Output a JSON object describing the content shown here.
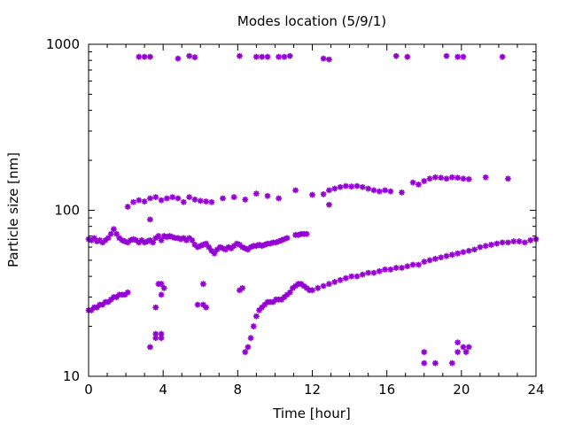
{
  "chart_data": {
    "type": "scatter",
    "title": "Modes location (5/9/1)",
    "xlabel": "Time [hour]",
    "ylabel": "Particle size [nm]",
    "xlim": [
      0,
      24
    ],
    "ylim": [
      10,
      1000
    ],
    "y_scale": "log",
    "grid": false,
    "legend": "none",
    "marker": "star",
    "color": "#9400d3",
    "xticks": [
      0,
      4,
      8,
      12,
      16,
      20,
      24
    ],
    "xtick_labels": [
      "0",
      "4",
      "8",
      "12",
      "16",
      "20",
      "24"
    ],
    "yticks": [
      10,
      100,
      1000
    ],
    "ytick_labels": [
      "10",
      "100",
      "1000"
    ],
    "series": [
      {
        "points": [
          [
            0.0,
            67
          ],
          [
            0.15,
            66
          ],
          [
            0.3,
            68
          ],
          [
            0.45,
            65
          ],
          [
            0.6,
            66
          ],
          [
            0.75,
            64
          ],
          [
            0.9,
            66
          ],
          [
            1.05,
            68
          ],
          [
            1.2,
            72
          ],
          [
            1.35,
            77
          ],
          [
            1.5,
            72
          ],
          [
            1.65,
            68
          ],
          [
            1.8,
            66
          ],
          [
            1.95,
            65
          ],
          [
            2.1,
            64
          ],
          [
            2.25,
            66
          ],
          [
            2.4,
            67
          ],
          [
            2.55,
            66
          ],
          [
            2.7,
            64
          ],
          [
            2.85,
            66
          ],
          [
            3.0,
            64
          ],
          [
            3.15,
            65
          ],
          [
            3.3,
            66
          ],
          [
            3.45,
            64
          ],
          [
            3.6,
            68
          ],
          [
            3.75,
            70
          ],
          [
            3.9,
            66
          ],
          [
            4.05,
            70
          ],
          [
            4.2,
            69
          ],
          [
            4.35,
            70
          ],
          [
            4.5,
            69
          ],
          [
            4.65,
            68
          ],
          [
            4.8,
            68
          ],
          [
            4.95,
            67
          ],
          [
            5.1,
            68
          ],
          [
            5.25,
            66
          ],
          [
            5.4,
            68
          ],
          [
            5.55,
            66
          ],
          [
            5.7,
            62
          ],
          [
            5.85,
            60
          ],
          [
            6.0,
            61
          ],
          [
            6.15,
            62
          ],
          [
            6.3,
            63
          ],
          [
            6.45,
            60
          ],
          [
            6.6,
            57
          ],
          [
            6.75,
            55
          ],
          [
            6.9,
            58
          ],
          [
            7.05,
            60
          ],
          [
            7.2,
            59
          ],
          [
            7.35,
            58
          ],
          [
            7.5,
            60
          ],
          [
            7.65,
            59
          ],
          [
            7.8,
            61
          ],
          [
            7.95,
            63
          ],
          [
            8.1,
            62
          ],
          [
            8.25,
            60
          ],
          [
            8.4,
            59
          ],
          [
            8.55,
            58
          ],
          [
            8.7,
            60
          ],
          [
            8.85,
            61
          ],
          [
            9.0,
            61
          ],
          [
            9.15,
            62
          ],
          [
            9.3,
            61
          ],
          [
            9.45,
            62
          ],
          [
            9.6,
            63
          ],
          [
            9.75,
            63
          ],
          [
            9.9,
            64
          ],
          [
            10.05,
            64
          ],
          [
            10.2,
            65
          ],
          [
            10.35,
            66
          ],
          [
            10.5,
            67
          ],
          [
            10.65,
            68
          ],
          [
            11.1,
            71
          ],
          [
            11.25,
            71
          ],
          [
            11.4,
            72
          ],
          [
            11.55,
            72
          ],
          [
            11.7,
            72
          ]
        ]
      },
      {
        "points": [
          [
            0.0,
            25
          ],
          [
            0.15,
            25
          ],
          [
            0.3,
            26
          ],
          [
            0.45,
            26
          ],
          [
            0.6,
            27
          ],
          [
            0.75,
            27
          ],
          [
            0.9,
            28
          ],
          [
            1.05,
            28
          ],
          [
            1.2,
            29
          ],
          [
            1.35,
            30
          ],
          [
            1.5,
            30
          ],
          [
            1.65,
            31
          ],
          [
            1.8,
            31
          ],
          [
            1.95,
            31
          ],
          [
            2.1,
            32
          ],
          [
            8.4,
            14
          ],
          [
            8.55,
            15
          ],
          [
            8.7,
            17
          ],
          [
            8.85,
            20
          ],
          [
            9.0,
            23
          ],
          [
            9.15,
            25
          ],
          [
            9.3,
            26
          ],
          [
            9.45,
            27
          ],
          [
            9.6,
            28
          ],
          [
            9.75,
            28
          ],
          [
            9.9,
            28
          ],
          [
            10.05,
            29
          ],
          [
            10.2,
            29
          ],
          [
            10.35,
            29
          ],
          [
            10.5,
            30
          ],
          [
            10.65,
            31
          ],
          [
            10.8,
            32
          ],
          [
            10.95,
            34
          ],
          [
            11.1,
            35
          ],
          [
            11.25,
            36
          ],
          [
            11.4,
            36
          ],
          [
            11.55,
            35
          ],
          [
            11.7,
            34
          ],
          [
            11.85,
            33
          ],
          [
            12.0,
            33
          ],
          [
            12.3,
            34
          ],
          [
            12.6,
            35
          ],
          [
            12.9,
            36
          ],
          [
            13.2,
            37
          ],
          [
            13.5,
            38
          ],
          [
            13.8,
            39
          ],
          [
            14.1,
            40
          ],
          [
            14.4,
            40
          ],
          [
            14.7,
            41
          ],
          [
            15.0,
            42
          ],
          [
            15.3,
            42
          ],
          [
            15.6,
            43
          ],
          [
            15.9,
            44
          ],
          [
            16.2,
            44
          ],
          [
            16.5,
            45
          ],
          [
            16.8,
            45
          ],
          [
            17.1,
            46
          ],
          [
            17.4,
            47
          ],
          [
            17.7,
            47
          ],
          [
            18.0,
            49
          ],
          [
            18.3,
            50
          ],
          [
            18.6,
            51
          ],
          [
            18.9,
            52
          ],
          [
            19.2,
            53
          ],
          [
            19.5,
            54
          ],
          [
            19.8,
            55
          ],
          [
            20.1,
            56
          ],
          [
            20.4,
            57
          ],
          [
            20.7,
            58
          ],
          [
            21.0,
            60
          ],
          [
            21.3,
            61
          ],
          [
            21.6,
            62
          ],
          [
            21.9,
            63
          ],
          [
            22.2,
            64
          ],
          [
            22.5,
            64
          ],
          [
            22.8,
            65
          ],
          [
            23.1,
            65
          ],
          [
            23.4,
            64
          ],
          [
            23.7,
            66
          ],
          [
            24.0,
            67
          ]
        ]
      },
      {
        "points": [
          [
            2.1,
            105
          ],
          [
            2.4,
            112
          ],
          [
            2.7,
            115
          ],
          [
            3.0,
            113
          ],
          [
            3.3,
            118
          ],
          [
            3.6,
            120
          ],
          [
            3.9,
            115
          ],
          [
            4.2,
            118
          ],
          [
            4.5,
            120
          ],
          [
            4.8,
            118
          ],
          [
            5.1,
            112
          ],
          [
            5.4,
            120
          ],
          [
            5.7,
            116
          ],
          [
            6.0,
            114
          ],
          [
            6.3,
            113
          ],
          [
            6.6,
            112
          ],
          [
            7.2,
            118
          ],
          [
            7.8,
            120
          ],
          [
            8.4,
            116
          ],
          [
            9.0,
            126
          ],
          [
            9.6,
            122
          ],
          [
            10.2,
            118
          ],
          [
            11.1,
            132
          ],
          [
            12.0,
            124
          ],
          [
            12.6,
            125
          ],
          [
            12.9,
            132
          ],
          [
            13.2,
            135
          ],
          [
            13.5,
            138
          ],
          [
            13.8,
            140
          ],
          [
            14.1,
            139
          ],
          [
            14.4,
            140
          ],
          [
            14.7,
            138
          ],
          [
            15.0,
            135
          ],
          [
            15.3,
            132
          ],
          [
            15.6,
            130
          ],
          [
            15.9,
            132
          ],
          [
            16.2,
            130
          ],
          [
            16.8,
            128
          ],
          [
            17.4,
            147
          ],
          [
            17.7,
            143
          ],
          [
            18.0,
            150
          ],
          [
            18.3,
            155
          ],
          [
            18.6,
            158
          ],
          [
            18.9,
            157
          ],
          [
            19.2,
            155
          ],
          [
            19.5,
            158
          ],
          [
            19.8,
            157
          ],
          [
            20.1,
            155
          ],
          [
            20.4,
            154
          ],
          [
            21.3,
            158
          ],
          [
            22.5,
            155
          ],
          [
            3.3,
            88
          ],
          [
            12.9,
            108
          ]
        ]
      },
      {
        "points": [
          [
            3.3,
            15
          ],
          [
            3.6,
            18
          ],
          [
            3.9,
            18
          ],
          [
            3.6,
            26
          ],
          [
            3.9,
            31
          ],
          [
            4.05,
            34
          ],
          [
            3.75,
            36
          ],
          [
            3.9,
            36
          ],
          [
            3.6,
            17
          ],
          [
            3.9,
            17
          ],
          [
            5.85,
            27
          ],
          [
            6.15,
            27
          ],
          [
            6.3,
            26
          ],
          [
            6.15,
            36
          ],
          [
            8.1,
            33
          ],
          [
            8.25,
            34
          ],
          [
            18.0,
            14
          ],
          [
            18.0,
            12
          ],
          [
            18.6,
            12
          ],
          [
            19.5,
            12
          ],
          [
            19.8,
            14
          ],
          [
            19.8,
            16
          ],
          [
            20.1,
            15
          ],
          [
            20.25,
            14
          ],
          [
            20.4,
            15
          ]
        ]
      },
      {
        "points": [
          [
            2.7,
            840
          ],
          [
            3.0,
            840
          ],
          [
            3.3,
            840
          ],
          [
            4.8,
            820
          ],
          [
            5.4,
            850
          ],
          [
            5.7,
            835
          ],
          [
            8.1,
            850
          ],
          [
            9.0,
            840
          ],
          [
            9.3,
            840
          ],
          [
            9.6,
            840
          ],
          [
            10.2,
            840
          ],
          [
            10.5,
            840
          ],
          [
            10.8,
            850
          ],
          [
            12.6,
            820
          ],
          [
            12.9,
            810
          ],
          [
            16.5,
            850
          ],
          [
            17.1,
            840
          ],
          [
            19.2,
            850
          ],
          [
            19.8,
            840
          ],
          [
            20.1,
            840
          ],
          [
            22.2,
            840
          ]
        ]
      }
    ]
  }
}
